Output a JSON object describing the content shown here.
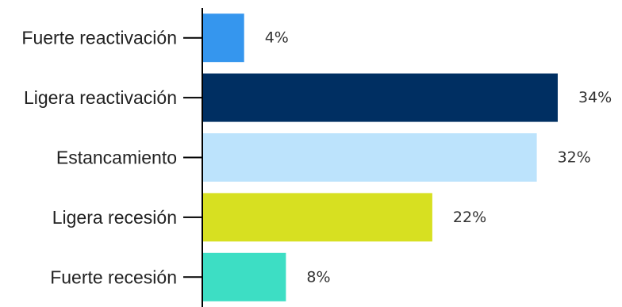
{
  "chart_data": {
    "type": "bar",
    "orientation": "horizontal",
    "categories": [
      "Fuerte reactivación",
      "Ligera reactivación",
      "Estancamiento",
      "Ligera recesión",
      "Fuerte recesión"
    ],
    "values": [
      4,
      34,
      32,
      22,
      8
    ],
    "value_labels": [
      "4%",
      "34%",
      "32%",
      "22%",
      "8%"
    ],
    "colors": [
      "#3596ee",
      "#002f62",
      "#bce3fc",
      "#d7e021",
      "#3ddec4"
    ],
    "title": "",
    "xlabel": "",
    "ylabel": "",
    "xlim": [
      0,
      34
    ],
    "grid": false,
    "legend": "none"
  }
}
